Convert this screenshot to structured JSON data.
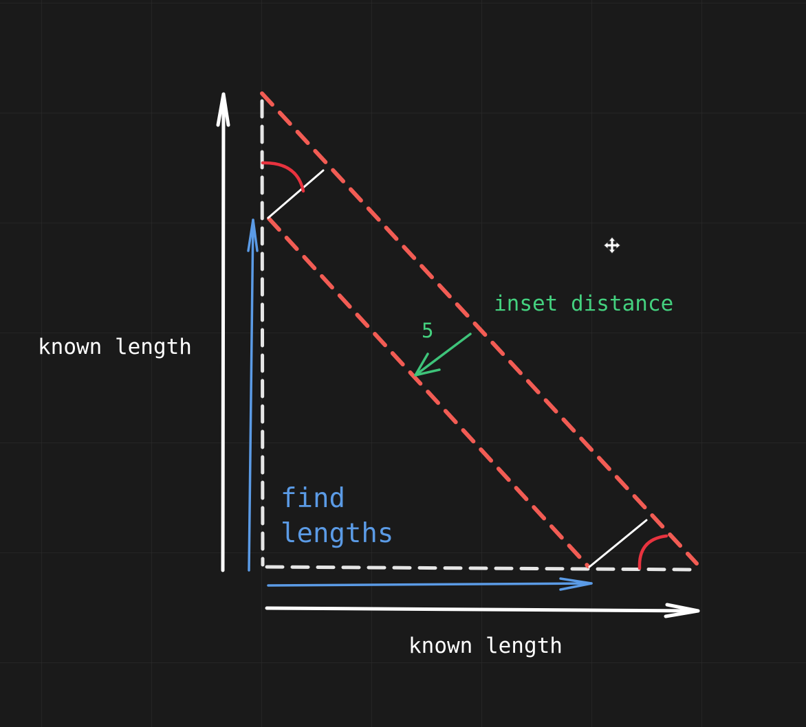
{
  "canvas": {
    "background": "#1a1a1a",
    "grid_color": "#2c2c2c",
    "cursor_icon": "move-cursor-icon"
  },
  "colors": {
    "white": "#ffffff",
    "dashed_gray": "#e6e6e6",
    "red": "#f25c54",
    "arc_red": "#e8333f",
    "blue": "#5b9be6",
    "green": "#3ec47a",
    "green_text": "#44d17f"
  },
  "labels": {
    "vertical_known_length": "known length",
    "horizontal_known_length": "known length",
    "inset_distance": "inset distance",
    "inset_value": "5",
    "find_line1": "find",
    "find_line2": "lengths"
  }
}
